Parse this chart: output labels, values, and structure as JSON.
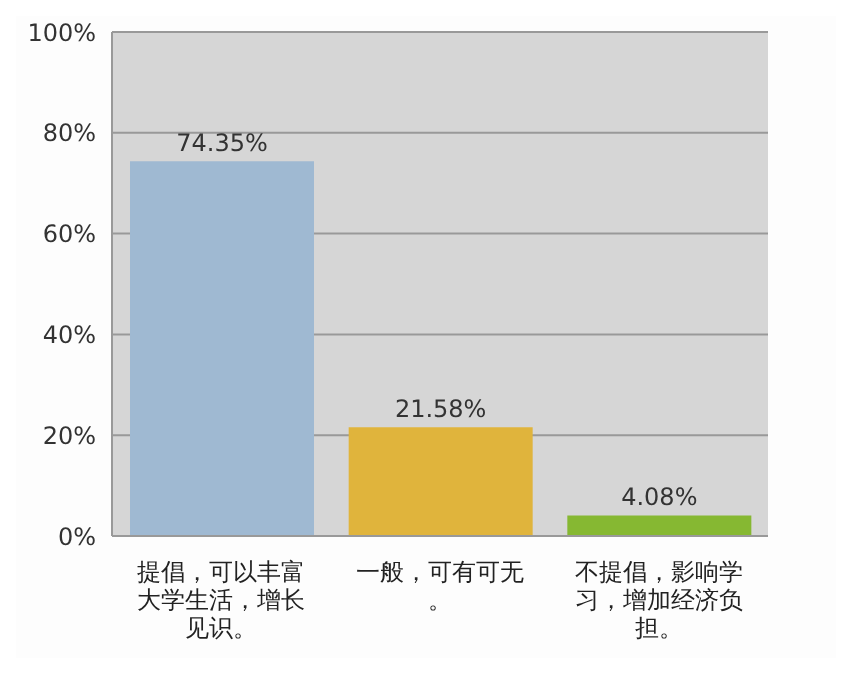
{
  "chart_data": {
    "type": "bar",
    "categories": [
      "提倡，可以丰富大学生活，增长见识。",
      "一般，可有可无。",
      "不提倡，影响学习，增加经济负担。"
    ],
    "values": [
      74.35,
      21.58,
      4.08
    ],
    "colors": [
      "#9fb9d2",
      "#e0b43c",
      "#86b832"
    ],
    "value_labels": [
      "74.35%",
      "21.58%",
      "4.08%"
    ],
    "ylim": [
      0,
      100
    ],
    "yticks": [
      {
        "value": 0,
        "label": "0%"
      },
      {
        "value": 20,
        "label": "20%"
      },
      {
        "value": 40,
        "label": "40%"
      },
      {
        "value": 60,
        "label": "60%"
      },
      {
        "value": 80,
        "label": "80%"
      },
      {
        "value": 100,
        "label": "100%"
      }
    ],
    "grid": "y"
  }
}
